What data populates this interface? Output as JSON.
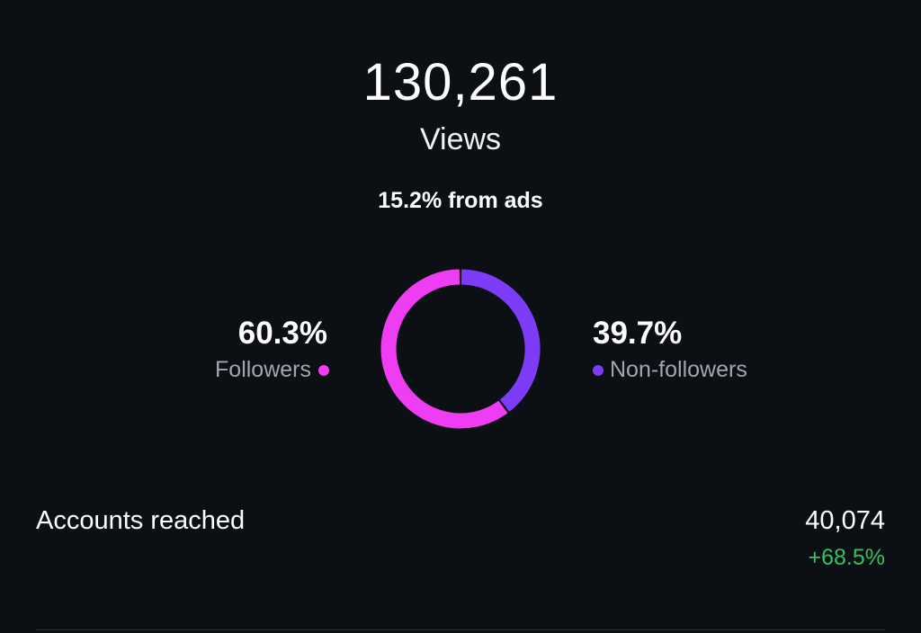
{
  "views": {
    "count": "130,261",
    "label": "Views",
    "ads_share": "15.2% from ads"
  },
  "audience": {
    "followers": {
      "percent_label": "60.3%",
      "value": 60.3,
      "label": "Followers",
      "color": "#ee3df2"
    },
    "non_followers": {
      "percent_label": "39.7%",
      "value": 39.7,
      "label": "Non-followers",
      "color": "#7d3cf8"
    }
  },
  "chart_data": {
    "type": "pie",
    "series": [
      {
        "name": "Followers",
        "value": 60.3,
        "color": "#ee3df2"
      },
      {
        "name": "Non-followers",
        "value": 39.7,
        "color": "#7d3cf8"
      }
    ]
  },
  "accounts_reached": {
    "label": "Accounts reached",
    "value": "40,074",
    "change": "+68.5%",
    "change_color": "#2fc361"
  },
  "colors": {
    "background": "#0c0f14",
    "muted_text": "#a3a7ad"
  }
}
